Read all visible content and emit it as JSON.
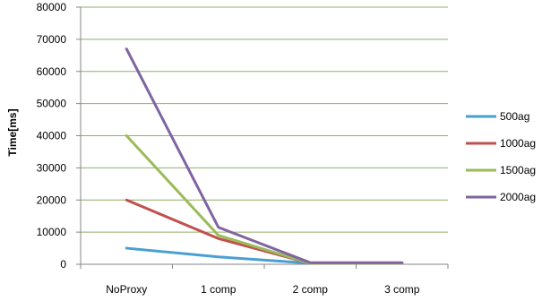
{
  "chart_data": {
    "type": "line",
    "categories": [
      "NoProxy",
      "1 comp",
      "2 comp",
      "3 comp"
    ],
    "series": [
      {
        "name": "500ag",
        "color": "#4a9fd1",
        "values": [
          5000,
          2300,
          300,
          300
        ]
      },
      {
        "name": "1000ag",
        "color": "#c0504d",
        "values": [
          20000,
          8000,
          300,
          300
        ]
      },
      {
        "name": "1500ag",
        "color": "#9bbb59",
        "values": [
          40000,
          9000,
          300,
          300
        ]
      },
      {
        "name": "2000ag",
        "color": "#8064a2",
        "values": [
          67000,
          11500,
          500,
          500
        ]
      }
    ],
    "title": "",
    "xlabel": "",
    "ylabel": "Time[ms]",
    "ylim": [
      0,
      80000
    ],
    "yticks": [
      0,
      10000,
      20000,
      30000,
      40000,
      50000,
      60000,
      70000,
      80000
    ],
    "grid": true,
    "legend_position": "right"
  }
}
